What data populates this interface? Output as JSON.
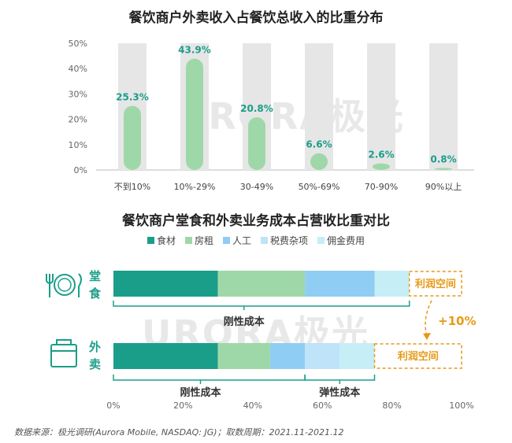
{
  "chart_data": [
    {
      "type": "bar",
      "title": "餐饮商户外卖收入占餐饮总收入的比重分布",
      "categories": [
        "不到10%",
        "10%-29%",
        "30-49%",
        "50%-69%",
        "70-90%",
        "90%以上"
      ],
      "values": [
        25.3,
        43.9,
        20.8,
        6.6,
        2.6,
        0.8
      ],
      "value_labels": [
        "25.3%",
        "43.9%",
        "20.8%",
        "6.6%",
        "2.6%",
        "0.8%"
      ],
      "yticks": [
        "0%",
        "10%",
        "20%",
        "30%",
        "40%",
        "50%"
      ],
      "ylim": [
        0,
        50
      ],
      "grid": false,
      "colors": {
        "bar": "#9fd8a8",
        "track": "#e6e6e6",
        "label": "#1a9e8a"
      }
    },
    {
      "type": "bar",
      "orientation": "horizontal",
      "stacked": true,
      "title": "餐饮商户堂食和外卖业务成本占营收比重对比",
      "categories": [
        "堂食",
        "外卖"
      ],
      "category_lines": [
        [
          "堂",
          "食"
        ],
        [
          "外",
          "卖"
        ]
      ],
      "series": [
        {
          "name": "食材",
          "values": [
            30,
            30
          ],
          "color": "#1a9e8a"
        },
        {
          "name": "房租",
          "values": [
            25,
            15
          ],
          "color": "#9fd8a8"
        },
        {
          "name": "人工",
          "values": [
            20,
            10
          ],
          "color": "#8fcdf5"
        },
        {
          "name": "税费杂项",
          "values": [
            0,
            10
          ],
          "color": "#bfe3f8"
        },
        {
          "name": "佣金费用",
          "values": [
            10,
            10
          ],
          "color": "#c6eef6"
        }
      ],
      "xticks": [
        "0%",
        "20%",
        "40%",
        "60%",
        "80%",
        "100%"
      ],
      "xlim": [
        0,
        100
      ],
      "legend_position": "top",
      "annotations": {
        "profit_label": "利润空间",
        "diff_label": "+10%",
        "rigid_cost_label": "刚性成本",
        "elastic_cost_label": "弹性成本"
      },
      "colors": {
        "accent": "#e69a17",
        "bracket": "#1a9e8a"
      }
    }
  ],
  "watermark": {
    "brand": "URORA",
    "cn": "极光"
  },
  "footer": {
    "source": "数据来源：极光调研(Aurora Mobile, NASDAQ: JG)；取数周期：2021.11-2021.12"
  }
}
